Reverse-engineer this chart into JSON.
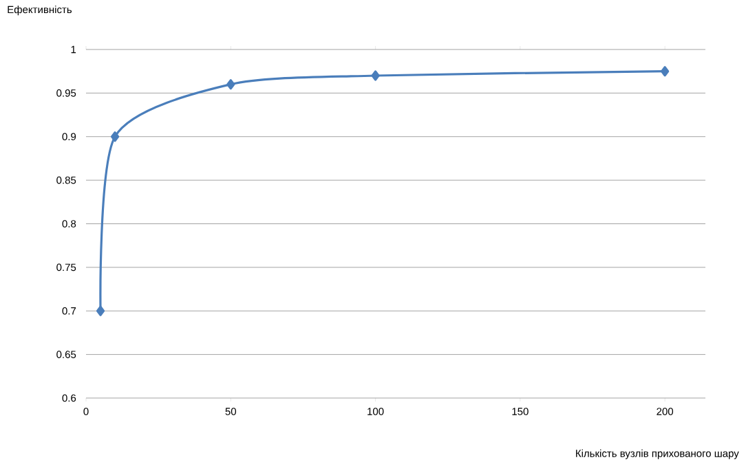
{
  "chart_data": {
    "type": "line",
    "ylabel": "Ефективність",
    "xlabel": "Кількість вузлів прихованого шару",
    "x": [
      5,
      10,
      50,
      100,
      200
    ],
    "series": [
      {
        "color": "#4a7ebb",
        "values": [
          0.7,
          0.9,
          0.96,
          0.97,
          0.975
        ]
      }
    ],
    "xlim": [
      0,
      214
    ],
    "xticks": [
      0,
      50,
      100,
      150,
      200
    ],
    "ylim": [
      0.6,
      1
    ],
    "yticks": [
      0.6,
      0.65,
      0.7,
      0.75,
      0.8,
      0.85,
      0.9,
      0.95,
      1
    ],
    "grid": "y",
    "marker": "diamond",
    "line_style": "solid",
    "legend": false
  }
}
